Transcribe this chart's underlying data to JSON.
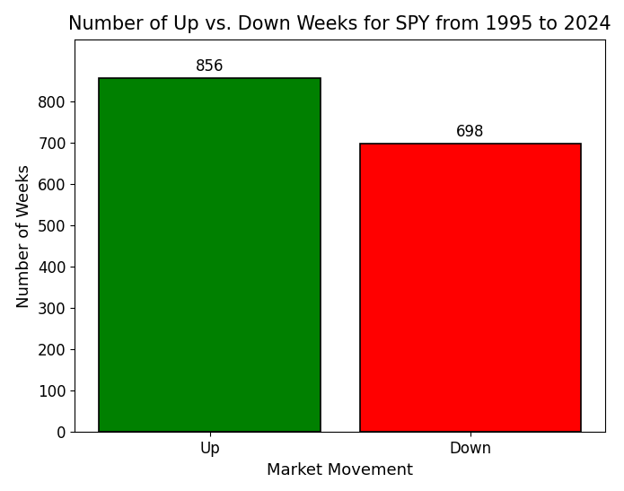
{
  "categories": [
    "Up",
    "Down"
  ],
  "values": [
    856,
    698
  ],
  "bar_colors": [
    "#008000",
    "#ff0000"
  ],
  "title": "Number of Up vs. Down Weeks for SPY from 1995 to 2024",
  "xlabel": "Market Movement",
  "ylabel": "Number of Weeks",
  "ylim": [
    0,
    950
  ],
  "title_fontsize": 15,
  "axis_label_fontsize": 13,
  "tick_fontsize": 12,
  "annotation_fontsize": 12,
  "bar_width": 0.85,
  "background_color": "#ffffff"
}
